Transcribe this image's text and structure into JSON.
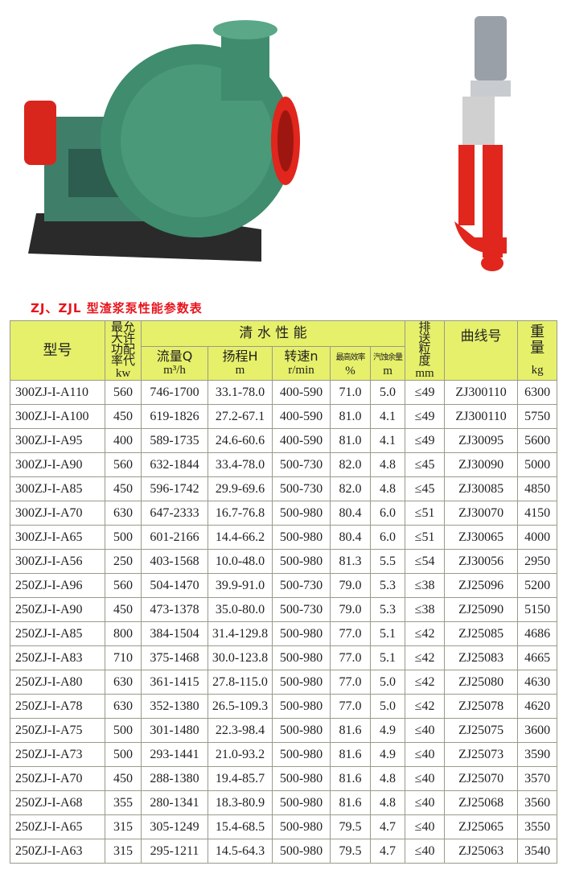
{
  "title": "ZJ、ZJL 型渣浆泵性能参数表",
  "colors": {
    "title": "#e8141c",
    "header_bg": "#e6f06a",
    "pump_green": "#3f8c6e",
    "pump_red": "#e0261d"
  },
  "images": {
    "horizontal_pump": "horizontal-slurry-pump-photo",
    "vertical_pump": "vertical-slurry-pump-photo"
  },
  "header": {
    "model": "型号",
    "power": "最允大许功配率代",
    "power_unit": "kw",
    "clear_water": "清 水 性 能",
    "flow": "流量Q",
    "flow_unit": "m³/h",
    "head": "扬程H",
    "head_unit": "m",
    "speed": "转速n",
    "speed_unit": "r/min",
    "efficiency": "最高效率",
    "efficiency_unit": "%",
    "npsh": "汽蚀余量",
    "npsh_unit": "m",
    "particle": "排送粒度",
    "particle_unit": "mm",
    "curve": "曲线号",
    "weight": "重量",
    "weight_unit": "kg"
  },
  "rows": [
    [
      "300ZJ-I-A110",
      "560",
      "746-1700",
      "33.1-78.0",
      "400-590",
      "71.0",
      "5.0",
      "≤49",
      "ZJ300110",
      "6300"
    ],
    [
      "300ZJ-I-A100",
      "450",
      "619-1826",
      "27.2-67.1",
      "400-590",
      "81.0",
      "4.1",
      "≤49",
      "ZJ300110",
      "5750"
    ],
    [
      "300ZJ-I-A95",
      "400",
      "589-1735",
      "24.6-60.6",
      "400-590",
      "81.0",
      "4.1",
      "≤49",
      "ZJ30095",
      "5600"
    ],
    [
      "300ZJ-I-A90",
      "560",
      "632-1844",
      "33.4-78.0",
      "500-730",
      "82.0",
      "4.8",
      "≤45",
      "ZJ30090",
      "5000"
    ],
    [
      "300ZJ-I-A85",
      "450",
      "596-1742",
      "29.9-69.6",
      "500-730",
      "82.0",
      "4.8",
      "≤45",
      "ZJ30085",
      "4850"
    ],
    [
      "300ZJ-I-A70",
      "630",
      "647-2333",
      "16.7-76.8",
      "500-980",
      "80.4",
      "6.0",
      "≤51",
      "ZJ30070",
      "4150"
    ],
    [
      "300ZJ-I-A65",
      "500",
      "601-2166",
      "14.4-66.2",
      "500-980",
      "80.4",
      "6.0",
      "≤51",
      "ZJ30065",
      "4000"
    ],
    [
      "300ZJ-I-A56",
      "250",
      "403-1568",
      "10.0-48.0",
      "500-980",
      "81.3",
      "5.5",
      "≤54",
      "ZJ30056",
      "2950"
    ],
    [
      "250ZJ-I-A96",
      "560",
      "504-1470",
      "39.9-91.0",
      "500-730",
      "79.0",
      "5.3",
      "≤38",
      "ZJ25096",
      "5200"
    ],
    [
      "250ZJ-I-A90",
      "450",
      "473-1378",
      "35.0-80.0",
      "500-730",
      "79.0",
      "5.3",
      "≤38",
      "ZJ25090",
      "5150"
    ],
    [
      "250ZJ-I-A85",
      "800",
      "384-1504",
      "31.4-129.8",
      "500-980",
      "77.0",
      "5.1",
      "≤42",
      "ZJ25085",
      "4686"
    ],
    [
      "250ZJ-I-A83",
      "710",
      "375-1468",
      "30.0-123.8",
      "500-980",
      "77.0",
      "5.1",
      "≤42",
      "ZJ25083",
      "4665"
    ],
    [
      "250ZJ-I-A80",
      "630",
      "361-1415",
      "27.8-115.0",
      "500-980",
      "77.0",
      "5.0",
      "≤42",
      "ZJ25080",
      "4630"
    ],
    [
      "250ZJ-I-A78",
      "630",
      "352-1380",
      "26.5-109.3",
      "500-980",
      "77.0",
      "5.0",
      "≤42",
      "ZJ25078",
      "4620"
    ],
    [
      "250ZJ-I-A75",
      "500",
      "301-1480",
      "22.3-98.4",
      "500-980",
      "81.6",
      "4.9",
      "≤40",
      "ZJ25075",
      "3600"
    ],
    [
      "250ZJ-I-A73",
      "500",
      "293-1441",
      "21.0-93.2",
      "500-980",
      "81.6",
      "4.9",
      "≤40",
      "ZJ25073",
      "3590"
    ],
    [
      "250ZJ-I-A70",
      "450",
      "288-1380",
      "19.4-85.7",
      "500-980",
      "81.6",
      "4.8",
      "≤40",
      "ZJ25070",
      "3570"
    ],
    [
      "250ZJ-I-A68",
      "355",
      "280-1341",
      "18.3-80.9",
      "500-980",
      "81.6",
      "4.8",
      "≤40",
      "ZJ25068",
      "3560"
    ],
    [
      "250ZJ-I-A65",
      "315",
      "305-1249",
      "15.4-68.5",
      "500-980",
      "79.5",
      "4.7",
      "≤40",
      "ZJ25065",
      "3550"
    ],
    [
      "250ZJ-I-A63",
      "315",
      "295-1211",
      "14.5-64.3",
      "500-980",
      "79.5",
      "4.7",
      "≤40",
      "ZJ25063",
      "3540"
    ]
  ]
}
